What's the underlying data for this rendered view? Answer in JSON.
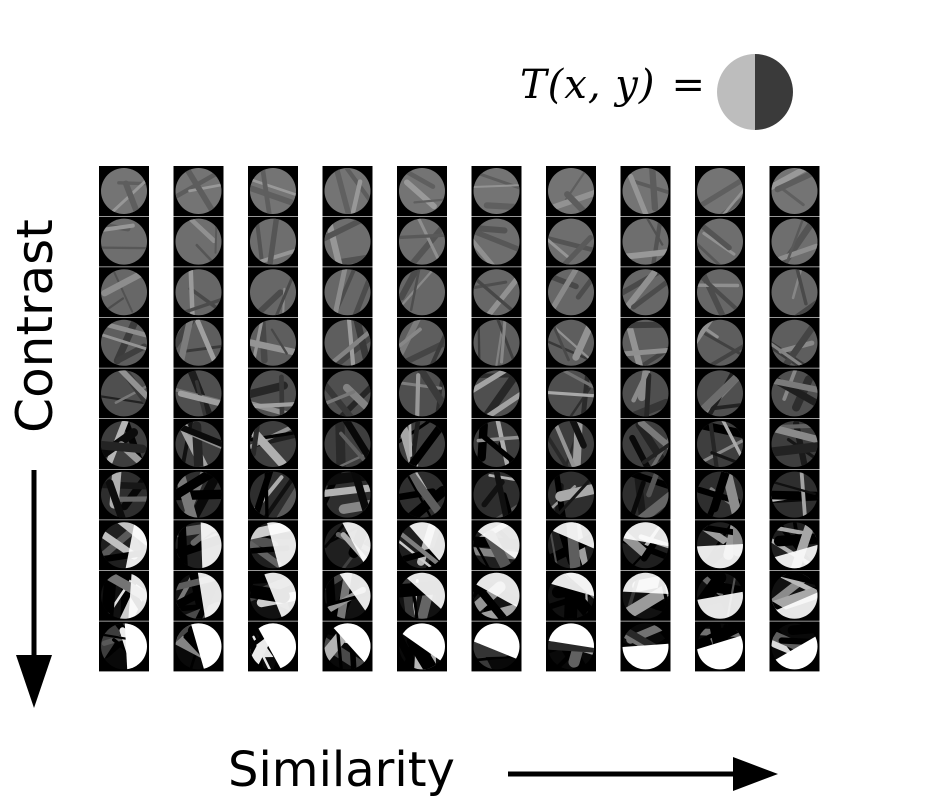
{
  "formula": {
    "lhs": "T(x, y)",
    "eq": "="
  },
  "template": {
    "left_color": "#bdbdbd",
    "right_color": "#3a3a3a"
  },
  "axes": {
    "y_label": "Contrast",
    "x_label": "Similarity"
  },
  "grid": {
    "rows": 10,
    "cols": 10,
    "patch_frame": "#000000",
    "row_contrast": [
      0.04,
      0.08,
      0.12,
      0.18,
      0.3,
      0.45,
      0.6,
      0.75,
      0.9,
      1.0
    ],
    "row_base_gray": [
      120,
      118,
      116,
      112,
      108,
      104,
      100,
      96,
      92,
      90
    ],
    "col_similarity": [
      0.05,
      0.15,
      0.25,
      0.35,
      0.45,
      0.55,
      0.65,
      0.75,
      0.85,
      0.95
    ]
  },
  "colors": {
    "text": "#000000",
    "background": "#ffffff"
  }
}
